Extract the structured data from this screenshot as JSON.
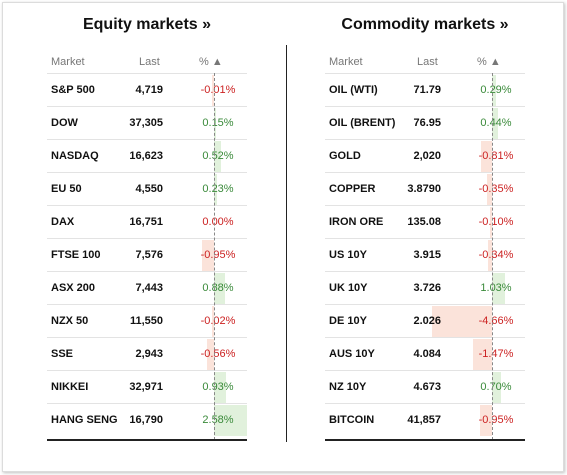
{
  "equity": {
    "title": "Equity markets »",
    "headers": {
      "market": "Market",
      "last": "Last",
      "pct": "% ▲"
    },
    "rows": [
      {
        "name": "S&P 500",
        "last": "4,719",
        "pct": "-0.01%",
        "value": -0.01
      },
      {
        "name": "DOW",
        "last": "37,305",
        "pct": "0.15%",
        "value": 0.15
      },
      {
        "name": "NASDAQ",
        "last": "16,623",
        "pct": "0.52%",
        "value": 0.52
      },
      {
        "name": "EU 50",
        "last": "4,550",
        "pct": "0.23%",
        "value": 0.23
      },
      {
        "name": "DAX",
        "last": "16,751",
        "pct": "0.00%",
        "value": 0.0
      },
      {
        "name": "FTSE 100",
        "last": "7,576",
        "pct": "-0.95%",
        "value": -0.95
      },
      {
        "name": "ASX 200",
        "last": "7,443",
        "pct": "0.88%",
        "value": 0.88
      },
      {
        "name": "NZX 50",
        "last": "11,550",
        "pct": "-0.02%",
        "value": -0.02
      },
      {
        "name": "SSE",
        "last": "2,943",
        "pct": "-0.56%",
        "value": -0.56
      },
      {
        "name": "NIKKEI",
        "last": "32,971",
        "pct": "0.93%",
        "value": 0.93
      },
      {
        "name": "HANG SENG",
        "last": "16,790",
        "pct": "2.58%",
        "value": 2.58
      }
    ]
  },
  "commodity": {
    "title": "Commodity markets »",
    "headers": {
      "market": "Market",
      "last": "Last",
      "pct": "% ▲"
    },
    "rows": [
      {
        "name": "OIL (WTI)",
        "last": "71.79",
        "pct": "0.29%",
        "value": 0.29
      },
      {
        "name": "OIL (BRENT)",
        "last": "76.95",
        "pct": "0.44%",
        "value": 0.44
      },
      {
        "name": "GOLD",
        "last": "2,020",
        "pct": "-0.81%",
        "value": -0.81
      },
      {
        "name": "COPPER",
        "last": "3.8790",
        "pct": "-0.35%",
        "value": -0.35
      },
      {
        "name": "IRON ORE",
        "last": "135.08",
        "pct": "-0.10%",
        "value": -0.1
      },
      {
        "name": "US 10Y",
        "last": "3.915",
        "pct": "-0.34%",
        "value": -0.34
      },
      {
        "name": "UK 10Y",
        "last": "3.726",
        "pct": "1.03%",
        "value": 1.03
      },
      {
        "name": "DE 10Y",
        "last": "2.026",
        "pct": "-4.66%",
        "value": -4.66
      },
      {
        "name": "AUS 10Y",
        "last": "4.084",
        "pct": "-1.47%",
        "value": -1.47
      },
      {
        "name": "NZ 10Y",
        "last": "4.673",
        "pct": "0.70%",
        "value": 0.7
      },
      {
        "name": "BITCOIN",
        "last": "41,857",
        "pct": "-0.95%",
        "value": -0.95
      }
    ]
  },
  "colors": {
    "positive": "#3a8a3a",
    "negative": "#cc2222",
    "positive_bar": "#e1f1dc",
    "negative_bar": "#fbe3da"
  }
}
